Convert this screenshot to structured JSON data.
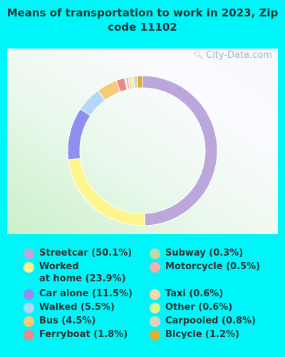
{
  "chart_data": {
    "type": "pie",
    "title": "Means of transportation to work in 2023, Zip code 11102",
    "categories": [
      "Streetcar",
      "Worked at home",
      "Car alone",
      "Walked",
      "Bus",
      "Ferryboat",
      "Subway",
      "Motorcycle",
      "Taxi",
      "Other",
      "Carpooled",
      "Bicycle"
    ],
    "values": [
      50.1,
      23.9,
      11.5,
      5.5,
      4.5,
      1.8,
      0.3,
      0.5,
      0.6,
      0.6,
      0.8,
      1.2
    ],
    "legend_labels": [
      "Streetcar (50.1%)",
      "Worked\nat home (23.9%)",
      "Car alone (11.5%)",
      "Walked (5.5%)",
      "Bus (4.5%)",
      "Ferryboat (1.8%)",
      "Subway (0.3%)",
      "Motorcycle (0.5%)",
      "Taxi (0.6%)",
      "Other (0.6%)",
      "Carpooled (0.8%)",
      "Bicycle (1.2%)"
    ],
    "colors": [
      "#bba7dc",
      "#fff58f",
      "#8f8ff0",
      "#b3d7f8",
      "#f9c97a",
      "#e88a8a",
      "#bfd8a8",
      "#f0b0b0",
      "#f9d8a8",
      "#d8f59a",
      "#d9d5bb",
      "#d9b13a"
    ],
    "donut": true,
    "legend_position": "bottom"
  },
  "watermark": "City-Data.com",
  "watermark_icon": "magnifier-icon"
}
